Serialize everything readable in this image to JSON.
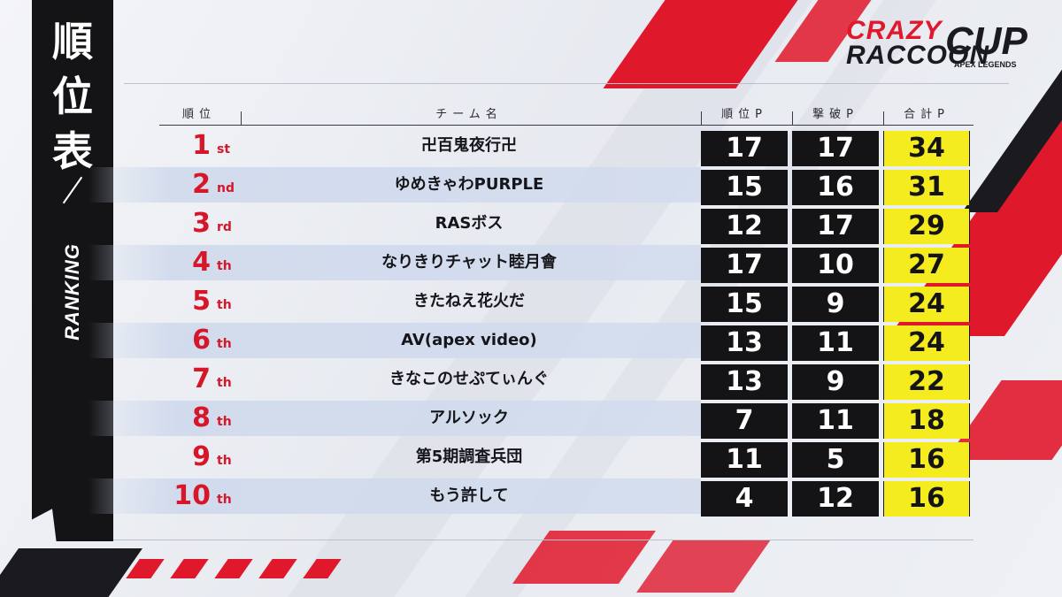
{
  "title": {
    "jp_chars": [
      "順",
      "位",
      "表"
    ],
    "en": "RANKING"
  },
  "logo": {
    "line1": "CRAZY",
    "line2": "RACCOON",
    "cup": "CUP",
    "sub": "APEX LEGENDS"
  },
  "header": {
    "rank": "順位",
    "team": "チーム名",
    "placement_points": "順位P",
    "kill_points": "撃破P",
    "total_points": "合計P"
  },
  "colors": {
    "accent_red": "#d6172a",
    "total_yellow": "#f5ec1f",
    "cell_black": "#141416"
  },
  "rows": [
    {
      "rank": "1",
      "suffix": "st",
      "team": "卍百鬼夜行卍",
      "placement": "17",
      "kills": "17",
      "total": "34"
    },
    {
      "rank": "2",
      "suffix": "nd",
      "team": "ゆめきゃわPURPLE",
      "placement": "15",
      "kills": "16",
      "total": "31"
    },
    {
      "rank": "3",
      "suffix": "rd",
      "team": "RASボス",
      "placement": "12",
      "kills": "17",
      "total": "29"
    },
    {
      "rank": "4",
      "suffix": "th",
      "team": "なりきりチャット睦月會",
      "placement": "17",
      "kills": "10",
      "total": "27"
    },
    {
      "rank": "5",
      "suffix": "th",
      "team": "きたねえ花火だ",
      "placement": "15",
      "kills": "9",
      "total": "24"
    },
    {
      "rank": "6",
      "suffix": "th",
      "team": "AV(apex video)",
      "placement": "13",
      "kills": "11",
      "total": "24"
    },
    {
      "rank": "7",
      "suffix": "th",
      "team": "きなこのせぷてぃんぐ",
      "placement": "13",
      "kills": "9",
      "total": "22"
    },
    {
      "rank": "8",
      "suffix": "th",
      "team": "アルソック",
      "placement": "7",
      "kills": "11",
      "total": "18"
    },
    {
      "rank": "9",
      "suffix": "th",
      "team": "第5期調査兵団",
      "placement": "11",
      "kills": "5",
      "total": "16"
    },
    {
      "rank": "10",
      "suffix": "th",
      "team": "もう許して",
      "placement": "4",
      "kills": "12",
      "total": "16"
    }
  ]
}
